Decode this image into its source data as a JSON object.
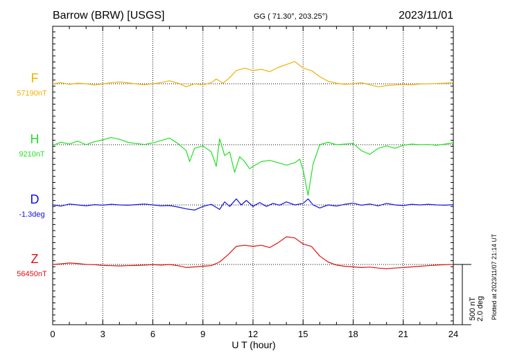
{
  "header": {
    "station": "Barrow (BRW)  [USGS]",
    "coords": "GG ( 71.30°, 203.25°)",
    "date": "2023/11/01"
  },
  "side_note": "Plotted at 2023/11/07 21:14 UT",
  "scale_note": {
    "nt": "500 nT",
    "deg": "2.0 deg"
  },
  "chart_data": {
    "type": "line",
    "title": "Barrow (BRW)  [USGS]",
    "xlabel": "U T (hour)",
    "xlim": [
      0,
      24
    ],
    "x_ticks": [
      0,
      3,
      6,
      9,
      12,
      15,
      18,
      21,
      24
    ],
    "grid": true,
    "scale_bar": "500 nT / 2.0 deg",
    "series": [
      {
        "name": "F",
        "baseline_label": "57190nT",
        "baseline": 57190,
        "unit": "nT",
        "color": "#f0b000",
        "points": [
          [
            0,
            57190
          ],
          [
            0.5,
            57200
          ],
          [
            1,
            57185
          ],
          [
            1.5,
            57195
          ],
          [
            2,
            57190
          ],
          [
            2.5,
            57180
          ],
          [
            3,
            57188
          ],
          [
            3.5,
            57200
          ],
          [
            4,
            57205
          ],
          [
            4.5,
            57198
          ],
          [
            5,
            57188
          ],
          [
            5.5,
            57182
          ],
          [
            6,
            57190
          ],
          [
            6.5,
            57200
          ],
          [
            7,
            57215
          ],
          [
            7.5,
            57195
          ],
          [
            8,
            57165
          ],
          [
            8.5,
            57190
          ],
          [
            9,
            57180
          ],
          [
            9.5,
            57200
          ],
          [
            9.8,
            57230
          ],
          [
            10.2,
            57195
          ],
          [
            10.6,
            57240
          ],
          [
            11,
            57300
          ],
          [
            11.5,
            57320
          ],
          [
            12,
            57300
          ],
          [
            12.5,
            57310
          ],
          [
            13,
            57290
          ],
          [
            13.5,
            57325
          ],
          [
            14,
            57350
          ],
          [
            14.5,
            57375
          ],
          [
            15,
            57320
          ],
          [
            15.5,
            57300
          ],
          [
            16,
            57250
          ],
          [
            16.5,
            57210
          ],
          [
            17,
            57195
          ],
          [
            17.5,
            57185
          ],
          [
            18,
            57190
          ],
          [
            18.5,
            57200
          ],
          [
            19,
            57180
          ],
          [
            19.5,
            57165
          ],
          [
            20,
            57175
          ],
          [
            20.5,
            57180
          ],
          [
            21,
            57185
          ],
          [
            21.5,
            57180
          ],
          [
            22,
            57188
          ],
          [
            22.5,
            57190
          ],
          [
            23,
            57192
          ],
          [
            23.5,
            57195
          ],
          [
            24,
            57200
          ]
        ]
      },
      {
        "name": "H",
        "baseline_label": "9210nT",
        "baseline": 9210,
        "unit": "nT",
        "color": "#22e022",
        "points": [
          [
            0,
            9205
          ],
          [
            0.5,
            9230
          ],
          [
            1,
            9215
          ],
          [
            1.5,
            9240
          ],
          [
            2,
            9210
          ],
          [
            2.5,
            9235
          ],
          [
            3,
            9250
          ],
          [
            3.5,
            9270
          ],
          [
            4,
            9255
          ],
          [
            4.5,
            9230
          ],
          [
            5,
            9220
          ],
          [
            5.5,
            9212
          ],
          [
            6,
            9225
          ],
          [
            6.5,
            9245
          ],
          [
            7,
            9265
          ],
          [
            7.5,
            9220
          ],
          [
            8,
            9160
          ],
          [
            8.2,
            9070
          ],
          [
            8.5,
            9180
          ],
          [
            9,
            9200
          ],
          [
            9.5,
            9150
          ],
          [
            9.8,
            9030
          ],
          [
            10,
            9260
          ],
          [
            10.3,
            9120
          ],
          [
            10.6,
            9150
          ],
          [
            10.9,
            8980
          ],
          [
            11.2,
            9110
          ],
          [
            11.5,
            9070
          ],
          [
            11.8,
            9010
          ],
          [
            12,
            9030
          ],
          [
            12.5,
            9070
          ],
          [
            13,
            9080
          ],
          [
            13.5,
            9060
          ],
          [
            14,
            9040
          ],
          [
            14.5,
            9060
          ],
          [
            14.8,
            9090
          ],
          [
            15,
            9000
          ],
          [
            15.3,
            8790
          ],
          [
            15.6,
            9050
          ],
          [
            16,
            9210
          ],
          [
            16.5,
            9230
          ],
          [
            17,
            9210
          ],
          [
            17.5,
            9215
          ],
          [
            18,
            9220
          ],
          [
            18.5,
            9160
          ],
          [
            19,
            9130
          ],
          [
            19.5,
            9180
          ],
          [
            20,
            9200
          ],
          [
            20.5,
            9180
          ],
          [
            21,
            9205
          ],
          [
            21.5,
            9215
          ],
          [
            22,
            9210
          ],
          [
            22.5,
            9212
          ],
          [
            23,
            9205
          ],
          [
            23.5,
            9215
          ],
          [
            24,
            9225
          ]
        ]
      },
      {
        "name": "D",
        "baseline_label": "-1.3deg",
        "baseline": -1.3,
        "unit": "deg",
        "color": "#1010e0",
        "points": [
          [
            0,
            -1.3
          ],
          [
            0.5,
            -1.34
          ],
          [
            1,
            -1.27
          ],
          [
            1.5,
            -1.3
          ],
          [
            2,
            -1.33
          ],
          [
            2.5,
            -1.29
          ],
          [
            3,
            -1.31
          ],
          [
            3.5,
            -1.28
          ],
          [
            4,
            -1.3
          ],
          [
            4.5,
            -1.31
          ],
          [
            5,
            -1.29
          ],
          [
            5.5,
            -1.27
          ],
          [
            6,
            -1.3
          ],
          [
            6.5,
            -1.33
          ],
          [
            7,
            -1.32
          ],
          [
            7.5,
            -1.37
          ],
          [
            8,
            -1.43
          ],
          [
            8.5,
            -1.47
          ],
          [
            9,
            -1.35
          ],
          [
            9.5,
            -1.28
          ],
          [
            10,
            -1.45
          ],
          [
            10.3,
            -1.2
          ],
          [
            10.6,
            -1.35
          ],
          [
            11,
            -1.1
          ],
          [
            11.3,
            -1.3
          ],
          [
            11.6,
            -1.15
          ],
          [
            12,
            -1.35
          ],
          [
            12.4,
            -1.22
          ],
          [
            12.8,
            -1.35
          ],
          [
            13.2,
            -1.25
          ],
          [
            13.6,
            -1.31
          ],
          [
            14,
            -1.2
          ],
          [
            14.5,
            -1.3
          ],
          [
            15,
            -1.25
          ],
          [
            15.3,
            -1.1
          ],
          [
            15.6,
            -1.3
          ],
          [
            16,
            -1.4
          ],
          [
            16.5,
            -1.3
          ],
          [
            17,
            -1.34
          ],
          [
            17.5,
            -1.28
          ],
          [
            18,
            -1.24
          ],
          [
            18.5,
            -1.31
          ],
          [
            19,
            -1.27
          ],
          [
            19.5,
            -1.33
          ],
          [
            20,
            -1.25
          ],
          [
            20.5,
            -1.3
          ],
          [
            21,
            -1.32
          ],
          [
            21.5,
            -1.28
          ],
          [
            22,
            -1.3
          ],
          [
            22.5,
            -1.28
          ],
          [
            23,
            -1.3
          ],
          [
            23.5,
            -1.31
          ],
          [
            24,
            -1.29
          ]
        ]
      },
      {
        "name": "Z",
        "baseline_label": "56450nT",
        "baseline": 56450,
        "unit": "nT",
        "color": "#e01010",
        "points": [
          [
            0,
            56450
          ],
          [
            0.5,
            56455
          ],
          [
            1,
            56462
          ],
          [
            1.5,
            56458
          ],
          [
            2,
            56450
          ],
          [
            2.5,
            56448
          ],
          [
            3,
            56442
          ],
          [
            3.5,
            56440
          ],
          [
            4,
            56438
          ],
          [
            4.5,
            56440
          ],
          [
            5,
            56442
          ],
          [
            5.5,
            56445
          ],
          [
            6,
            56448
          ],
          [
            6.5,
            56445
          ],
          [
            7,
            56450
          ],
          [
            7.5,
            56440
          ],
          [
            8,
            56425
          ],
          [
            8.5,
            56430
          ],
          [
            9,
            56435
          ],
          [
            9.5,
            56440
          ],
          [
            10,
            56470
          ],
          [
            10.5,
            56530
          ],
          [
            11,
            56600
          ],
          [
            11.5,
            56610
          ],
          [
            12,
            56600
          ],
          [
            12.5,
            56610
          ],
          [
            13,
            56590
          ],
          [
            13.5,
            56630
          ],
          [
            14,
            56680
          ],
          [
            14.5,
            56670
          ],
          [
            15,
            56620
          ],
          [
            15.5,
            56600
          ],
          [
            16,
            56520
          ],
          [
            16.5,
            56470
          ],
          [
            17,
            56445
          ],
          [
            17.5,
            56435
          ],
          [
            18,
            56430
          ],
          [
            18.5,
            56425
          ],
          [
            19,
            56428
          ],
          [
            19.5,
            56420
          ],
          [
            20,
            56415
          ],
          [
            20.5,
            56420
          ],
          [
            21,
            56425
          ],
          [
            21.5,
            56430
          ],
          [
            22,
            56435
          ],
          [
            22.5,
            56440
          ],
          [
            23,
            56445
          ],
          [
            23.5,
            56448
          ],
          [
            24,
            56450
          ]
        ]
      }
    ]
  }
}
